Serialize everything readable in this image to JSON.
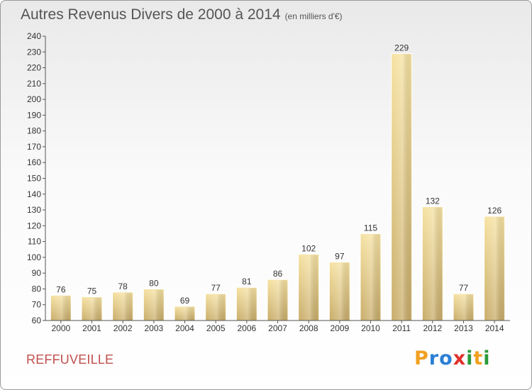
{
  "page": {
    "title": "Autres Revenus Divers de 2000 à 2014",
    "unit": "(en milliers d'€)",
    "town": "REFFUVEILLE",
    "logo": {
      "letters": [
        "P",
        "r",
        "o",
        "x",
        "i",
        "t",
        "i"
      ],
      "colors": [
        "#f0a020",
        "#2a7fd4",
        "#2a7fd4",
        "#e0302a",
        "#2a9a3a",
        "#f0a020",
        "#2a9a3a"
      ]
    }
  },
  "chart_data": {
    "type": "bar",
    "categories": [
      "2000",
      "2001",
      "2002",
      "2003",
      "2004",
      "2005",
      "2006",
      "2007",
      "2008",
      "2009",
      "2010",
      "2011",
      "2012",
      "2013",
      "2014"
    ],
    "values": [
      76,
      75,
      78,
      80,
      69,
      77,
      81,
      86,
      102,
      97,
      115,
      229,
      132,
      77,
      126
    ],
    "ylim": [
      60,
      240
    ],
    "yticks": [
      60,
      70,
      80,
      90,
      100,
      110,
      120,
      130,
      140,
      150,
      160,
      170,
      180,
      190,
      200,
      210,
      220,
      230,
      240
    ],
    "grid": false,
    "bar_color": "#e6c981",
    "legend": "none"
  }
}
